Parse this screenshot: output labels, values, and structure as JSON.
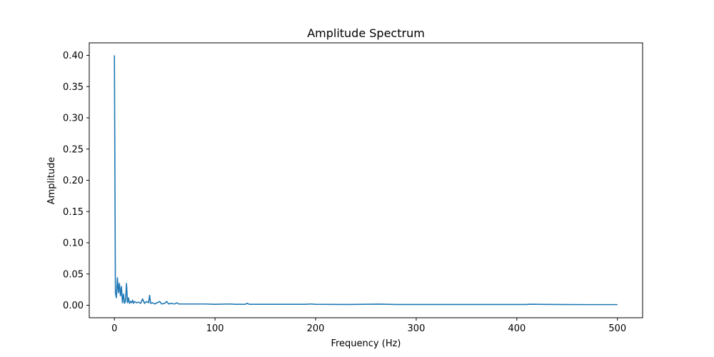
{
  "chart_data": {
    "type": "line",
    "title": "Amplitude Spectrum",
    "xlabel": "Frequency (Hz)",
    "ylabel": "Amplitude",
    "xlim": [
      -25,
      525
    ],
    "ylim": [
      -0.02,
      0.42
    ],
    "xticks": [
      0,
      100,
      200,
      300,
      400,
      500
    ],
    "xtick_labels": [
      "0",
      "100",
      "200",
      "300",
      "400",
      "500"
    ],
    "yticks": [
      0.0,
      0.05,
      0.1,
      0.15,
      0.2,
      0.25,
      0.3,
      0.35,
      0.4
    ],
    "ytick_labels": [
      "0.00",
      "0.05",
      "0.10",
      "0.15",
      "0.20",
      "0.25",
      "0.30",
      "0.35",
      "0.40"
    ],
    "grid": false,
    "legend": "none",
    "series": [
      {
        "color": "#1f77b4",
        "x": [
          0,
          1,
          2,
          3,
          4,
          5,
          6,
          7,
          8,
          9,
          10,
          11,
          12,
          13,
          14,
          15,
          16,
          17,
          18,
          19,
          20,
          22,
          24,
          26,
          28,
          30,
          32,
          34,
          35,
          36,
          38,
          40,
          45,
          47,
          50,
          52,
          54,
          56,
          60,
          62,
          64,
          70,
          80,
          90,
          100,
          115,
          120,
          130,
          132,
          134,
          150,
          170,
          190,
          195,
          200,
          230,
          263,
          280,
          300,
          340,
          370,
          390,
          410,
          412,
          440,
          470,
          500
        ],
        "y": [
          0.4,
          0.02,
          0.012,
          0.044,
          0.02,
          0.035,
          0.015,
          0.03,
          0.004,
          0.018,
          0.003,
          0.006,
          0.035,
          0.004,
          0.012,
          0.003,
          0.006,
          0.004,
          0.008,
          0.003,
          0.006,
          0.004,
          0.005,
          0.003,
          0.01,
          0.003,
          0.006,
          0.004,
          0.016,
          0.003,
          0.004,
          0.002,
          0.006,
          0.002,
          0.003,
          0.006,
          0.002,
          0.003,
          0.002,
          0.004,
          0.002,
          0.002,
          0.002,
          0.002,
          0.0015,
          0.002,
          0.0015,
          0.0015,
          0.003,
          0.0015,
          0.0015,
          0.0015,
          0.0015,
          0.002,
          0.0015,
          0.0012,
          0.0018,
          0.0012,
          0.0012,
          0.0012,
          0.0012,
          0.0012,
          0.0012,
          0.0016,
          0.0012,
          0.001,
          0.001
        ]
      }
    ]
  }
}
